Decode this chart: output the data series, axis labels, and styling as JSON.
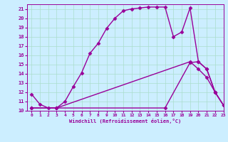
{
  "xlabel": "Windchill (Refroidissement éolien,°C)",
  "bg_color": "#cceeff",
  "line_color": "#990099",
  "grid_color": "#aaddcc",
  "xlim": [
    -0.5,
    23
  ],
  "ylim": [
    10,
    21.5
  ],
  "yticks": [
    10,
    11,
    12,
    13,
    14,
    15,
    16,
    17,
    18,
    19,
    20,
    21
  ],
  "xticks": [
    0,
    1,
    2,
    3,
    4,
    5,
    6,
    7,
    8,
    9,
    10,
    11,
    12,
    13,
    14,
    15,
    16,
    17,
    18,
    19,
    20,
    21,
    22,
    23
  ],
  "line1_x": [
    0,
    1,
    2,
    3,
    4,
    5,
    6,
    7,
    8,
    9,
    10,
    11,
    12,
    13,
    14,
    15,
    16,
    17,
    18,
    19,
    20,
    21,
    22,
    23
  ],
  "line1_y": [
    11.8,
    10.7,
    10.3,
    10.3,
    11.0,
    12.6,
    14.1,
    16.2,
    17.3,
    18.9,
    20.0,
    20.8,
    21.0,
    21.1,
    21.2,
    21.2,
    21.2,
    18.0,
    18.5,
    21.1,
    15.3,
    14.5,
    12.0,
    10.6
  ],
  "line2_x": [
    0,
    3,
    19,
    20,
    21,
    22,
    23
  ],
  "line2_y": [
    10.3,
    10.3,
    15.3,
    14.5,
    13.6,
    12.0,
    10.6
  ],
  "line3_x": [
    0,
    3,
    16,
    19,
    20,
    21,
    22,
    23
  ],
  "line3_y": [
    10.3,
    10.3,
    10.3,
    15.2,
    15.3,
    14.5,
    12.0,
    10.6
  ],
  "marker": "D",
  "markersize": 2.5,
  "linewidth": 1.0
}
